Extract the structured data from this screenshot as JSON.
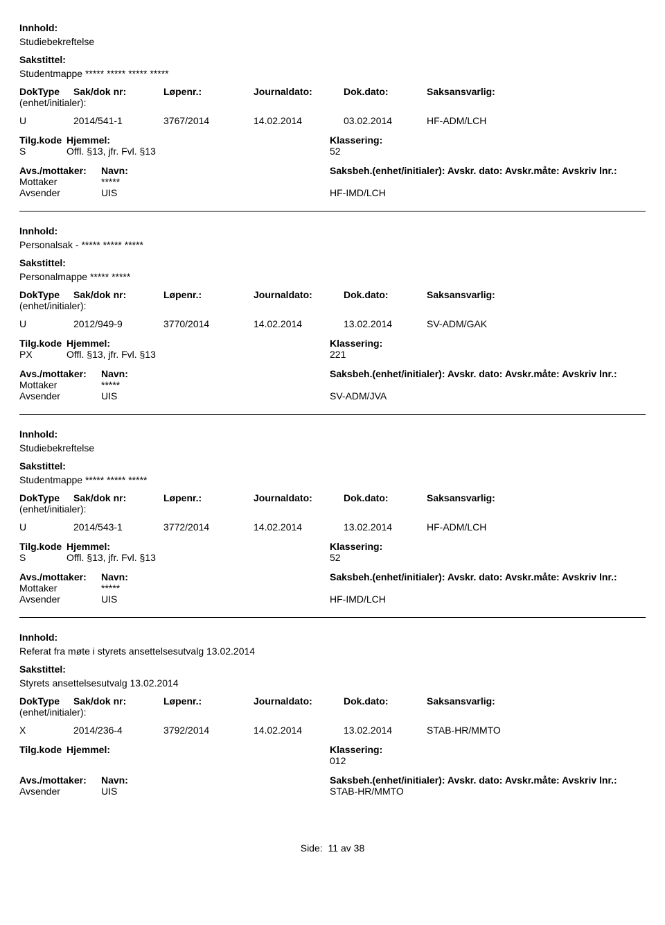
{
  "labels": {
    "innhold": "Innhold:",
    "sakstittel": "Sakstittel:",
    "doktype": "DokType",
    "sakdoknr": "Sak/dok nr:",
    "lopenr": "Løpenr.:",
    "journaldato": "Journaldato:",
    "dokdato": "Dok.dato:",
    "saksansvarlig": "Saksansvarlig:",
    "enhet": "(enhet/initialer):",
    "tilgkode": "Tilg.kode",
    "hjemmel": "Hjemmel:",
    "klassering": "Klassering:",
    "avsmottaker": "Avs./mottaker:",
    "navn": "Navn:",
    "saksbeh": "Saksbeh.(enhet/initialer): Avskr. dato:  Avskr.måte: Avskriv lnr.:"
  },
  "records": [
    {
      "innhold": "Studiebekreftelse",
      "sakstittel": "Studentmappe ***** ***** ***** *****",
      "doktype": "U",
      "sakdoknr": "2014/541-1",
      "lopenr": "3767/2014",
      "journaldato": "14.02.2014",
      "dokdato": "03.02.2014",
      "saksansvarlig": "HF-ADM/LCH",
      "tilgkode": "S",
      "hjemmel": "Offl. §13, jfr. Fvl. §13",
      "klassering": "52",
      "parties": [
        {
          "role": "Mottaker",
          "name": "*****",
          "unit": ""
        },
        {
          "role": "Avsender",
          "name": "UIS",
          "unit": "HF-IMD/LCH"
        }
      ]
    },
    {
      "innhold": "Personalsak - ***** ***** *****",
      "sakstittel": "Personalmappe ***** *****",
      "doktype": "U",
      "sakdoknr": "2012/949-9",
      "lopenr": "3770/2014",
      "journaldato": "14.02.2014",
      "dokdato": "13.02.2014",
      "saksansvarlig": "SV-ADM/GAK",
      "tilgkode": "PX",
      "hjemmel": "Offl. §13, jfr. Fvl. §13",
      "klassering": "221",
      "parties": [
        {
          "role": "Mottaker",
          "name": "*****",
          "unit": ""
        },
        {
          "role": "Avsender",
          "name": "UIS",
          "unit": "SV-ADM/JVA"
        }
      ]
    },
    {
      "innhold": "Studiebekreftelse",
      "sakstittel": "Studentmappe ***** ***** *****",
      "doktype": "U",
      "sakdoknr": "2014/543-1",
      "lopenr": "3772/2014",
      "journaldato": "14.02.2014",
      "dokdato": "13.02.2014",
      "saksansvarlig": "HF-ADM/LCH",
      "tilgkode": "S",
      "hjemmel": "Offl. §13, jfr. Fvl. §13",
      "klassering": "52",
      "parties": [
        {
          "role": "Mottaker",
          "name": "*****",
          "unit": ""
        },
        {
          "role": "Avsender",
          "name": "UIS",
          "unit": "HF-IMD/LCH"
        }
      ]
    },
    {
      "innhold": "Referat fra møte i styrets ansettelsesutvalg 13.02.2014",
      "sakstittel": "Styrets ansettelsesutvalg 13.02.2014",
      "doktype": "X",
      "sakdoknr": "2014/236-4",
      "lopenr": "3792/2014",
      "journaldato": "14.02.2014",
      "dokdato": "13.02.2014",
      "saksansvarlig": "STAB-HR/MMTO",
      "tilgkode": "",
      "hjemmel": "",
      "klassering": "012",
      "parties": [
        {
          "role": "Avsender",
          "name": "UIS",
          "unit": "STAB-HR/MMTO"
        }
      ]
    }
  ],
  "footer": {
    "label": "Side:",
    "page": "11",
    "sep": "av",
    "total": "38"
  }
}
